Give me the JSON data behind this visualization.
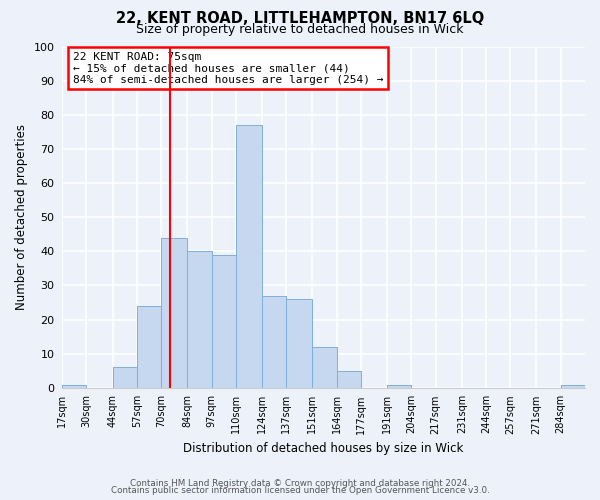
{
  "title": "22, KENT ROAD, LITTLEHAMPTON, BN17 6LQ",
  "subtitle": "Size of property relative to detached houses in Wick",
  "xlabel": "Distribution of detached houses by size in Wick",
  "ylabel": "Number of detached properties",
  "bin_labels": [
    "17sqm",
    "30sqm",
    "44sqm",
    "57sqm",
    "70sqm",
    "84sqm",
    "97sqm",
    "110sqm",
    "124sqm",
    "137sqm",
    "151sqm",
    "164sqm",
    "177sqm",
    "191sqm",
    "204sqm",
    "217sqm",
    "231sqm",
    "244sqm",
    "257sqm",
    "271sqm",
    "284sqm"
  ],
  "bar_values": [
    1,
    0,
    6,
    24,
    44,
    40,
    39,
    77,
    27,
    26,
    12,
    5,
    0,
    1,
    0,
    0,
    0,
    0,
    0,
    0,
    1
  ],
  "bar_color": "#c5d8f0",
  "bar_edgecolor": "#7fb0d8",
  "vline_x": 75,
  "vline_label": "22 KENT ROAD: 75sqm",
  "annotation_line1": "← 15% of detached houses are smaller (44)",
  "annotation_line2": "84% of semi-detached houses are larger (254) →",
  "box_facecolor": "white",
  "box_edgecolor": "red",
  "vline_color": "red",
  "ylim": [
    0,
    100
  ],
  "yticks": [
    0,
    10,
    20,
    30,
    40,
    50,
    60,
    70,
    80,
    90,
    100
  ],
  "footnote1": "Contains HM Land Registry data © Crown copyright and database right 2024.",
  "footnote2": "Contains public sector information licensed under the Open Government Licence v3.0.",
  "bg_color": "#edf2fa",
  "plot_bg_color": "#edf2fa",
  "grid_color": "#ffffff"
}
